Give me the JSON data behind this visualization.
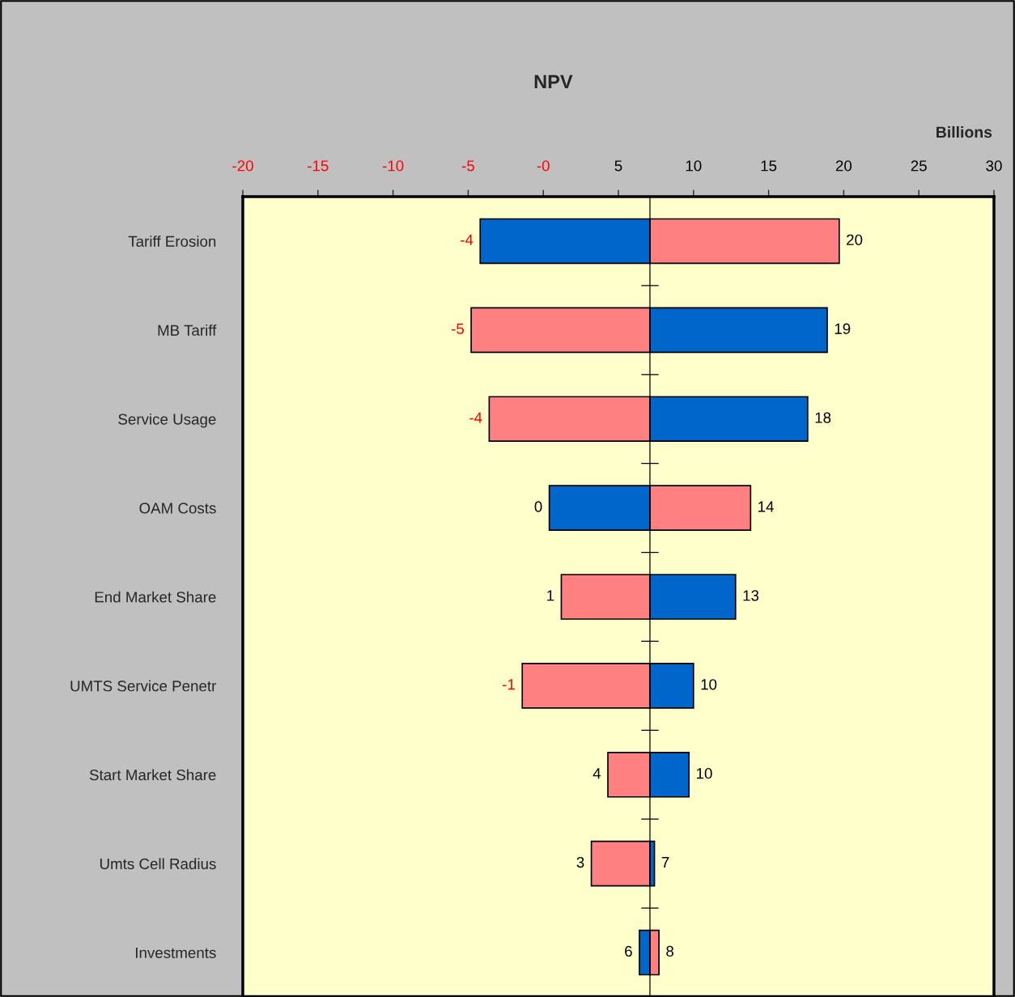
{
  "chart_data": {
    "type": "bar",
    "orientation": "horizontal",
    "title": "NPV",
    "xlabel": "Billions",
    "categories": [
      "Tariff Erosion",
      "MB Tariff",
      "Service Usage",
      "OAM Costs",
      "End Market Share",
      "UMTS Service Penetr",
      "Start Market Share",
      "Umts Cell Radius",
      "Investments"
    ],
    "series": [
      {
        "base": [
          -4.2,
          -4.8,
          -3.6,
          0.4,
          1.2,
          -1.4,
          4.3,
          3.2,
          6.4
        ],
        "values": [
          11.3,
          11.9,
          10.7,
          6.7,
          5.9,
          8.5,
          2.8,
          3.9,
          0.7
        ],
        "colors": [
          "#0066cc",
          "#ff8080",
          "#ff8080",
          "#0066cc",
          "#ff8080",
          "#ff8080",
          "#ff8080",
          "#ff8080",
          "#0066cc"
        ]
      },
      {
        "base": [
          7.1,
          7.1,
          7.1,
          7.1,
          7.1,
          7.1,
          7.1,
          7.1,
          7.1
        ],
        "values": [
          12.6,
          11.8,
          10.5,
          6.7,
          5.7,
          2.9,
          2.6,
          0.3,
          0.6
        ],
        "colors": [
          "#ff8080",
          "#0066cc",
          "#0066cc",
          "#ff8080",
          "#0066cc",
          "#0066cc",
          "#0066cc",
          "#0066cc",
          "#ff8080"
        ]
      }
    ],
    "annotations": [
      {
        "text": "-4",
        "x": -4.2,
        "y": "Tariff Erosion"
      },
      {
        "text": "20",
        "x": 19.7,
        "y": "Tariff Erosion"
      },
      {
        "text": "-5",
        "x": -4.8,
        "y": "MB Tariff"
      },
      {
        "text": "19",
        "x": 18.9,
        "y": "MB Tariff"
      },
      {
        "text": "-4",
        "x": -3.6,
        "y": "Service Usage"
      },
      {
        "text": "18",
        "x": 17.6,
        "y": "Service Usage"
      },
      {
        "text": "0",
        "x": 0.4,
        "y": "OAM Costs"
      },
      {
        "text": "14",
        "x": 13.8,
        "y": "OAM Costs"
      },
      {
        "text": "1",
        "x": 1.2,
        "y": "End Market Share"
      },
      {
        "text": "13",
        "x": 12.8,
        "y": "End Market Share"
      },
      {
        "text": "-1",
        "x": -1.4,
        "y": "UMTS Service Penetr"
      },
      {
        "text": "10",
        "x": 10.0,
        "y": "UMTS Service Penetr"
      },
      {
        "text": "4",
        "x": 4.3,
        "y": "Start Market Share"
      },
      {
        "text": "10",
        "x": 9.7,
        "y": "Start Market Share"
      },
      {
        "text": "3",
        "x": 3.2,
        "y": "Umts Cell Radius"
      },
      {
        "text": "7",
        "x": 7.4,
        "y": "Umts Cell Radius"
      },
      {
        "text": "6",
        "x": 6.4,
        "y": "Investments"
      },
      {
        "text": "8",
        "x": 7.7,
        "y": "Investments"
      }
    ],
    "xlim": [
      -20,
      30
    ],
    "xticks": [
      -20,
      -15,
      -10,
      -5,
      {
        "value": 0,
        "label": "-0"
      },
      5,
      10,
      15,
      20,
      25,
      30
    ],
    "ref_lines": [
      {
        "axis": "x",
        "value": 7.1,
        "label": null,
        "color": "#000000"
      }
    ],
    "grid": false,
    "legend": false
  }
}
